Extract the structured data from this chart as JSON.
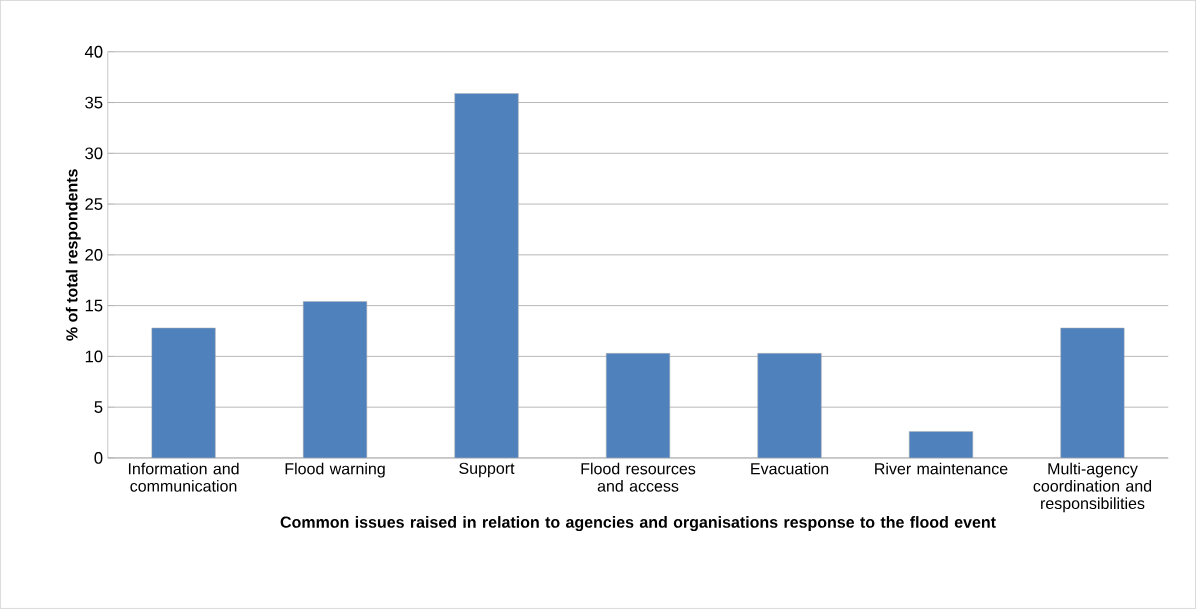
{
  "chart_data": {
    "type": "bar",
    "categories": [
      "Information and communication",
      "Flood warning",
      "Support",
      "Flood resources and access",
      "Evacuation",
      "River maintenance",
      "Multi-agency coordination and responsibilities"
    ],
    "values": [
      12.8,
      15.4,
      35.9,
      10.3,
      10.3,
      2.6,
      12.8
    ],
    "color": "#4f81bd",
    "xlabel": "Common issues raised in relation to agencies and organisations response to the flood event",
    "ylabel": "% of total respondents",
    "ylim": [
      0,
      40
    ],
    "yticks": [
      0,
      5,
      10,
      15,
      20,
      25,
      30,
      35,
      40
    ],
    "grid": "y"
  }
}
